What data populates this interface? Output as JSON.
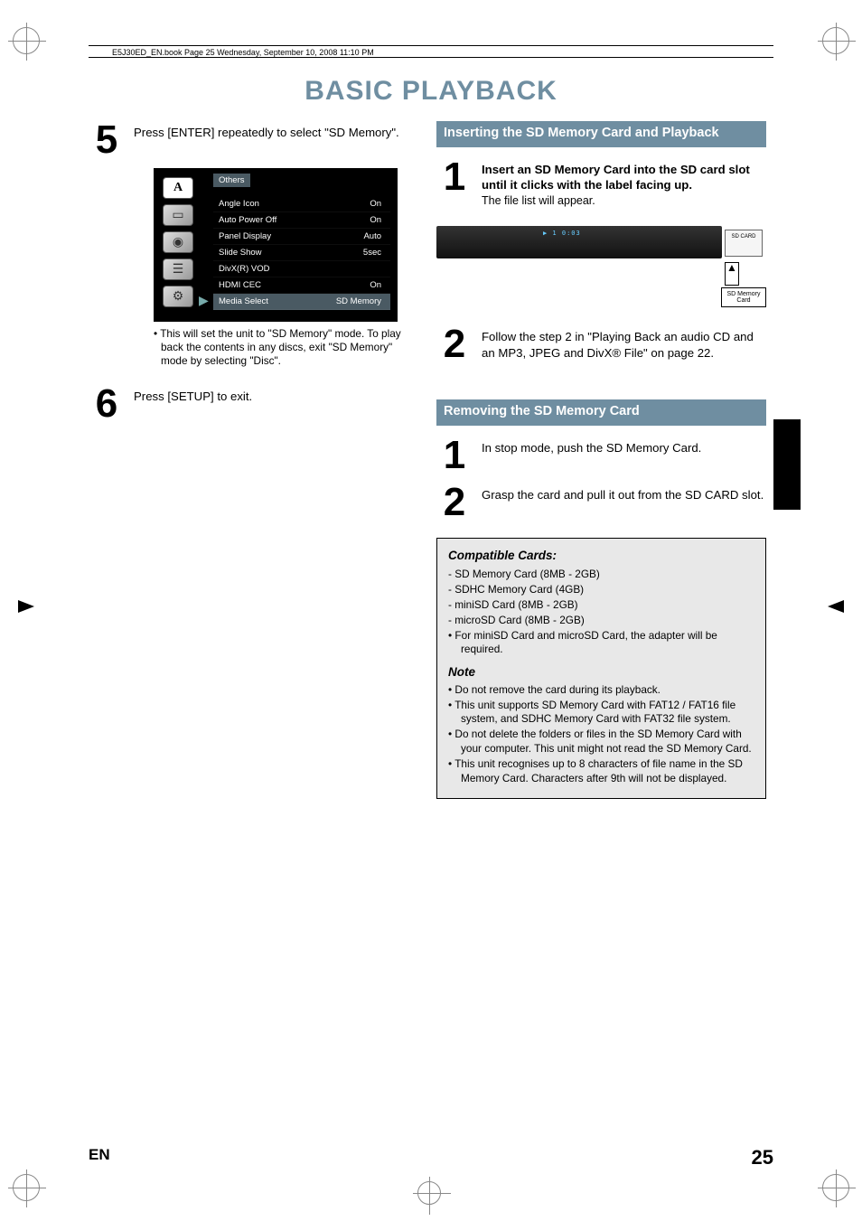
{
  "header_text": "E5J30ED_EN.book  Page 25  Wednesday, September 10, 2008  11:10 PM",
  "title": "BASIC PLAYBACK",
  "left": {
    "step5": {
      "num": "5",
      "text": "Press [ENTER] repeatedly to select \"SD Memory\".",
      "note": "This will set the unit to \"SD Memory\" mode. To play back the contents in any discs, exit \"SD Memory\" mode by selecting \"Disc\"."
    },
    "step6": {
      "num": "6",
      "text": "Press [SETUP] to exit."
    },
    "menu": {
      "others": "Others",
      "rows": [
        {
          "label": "Angle Icon",
          "val": "On"
        },
        {
          "label": "Auto Power Off",
          "val": "On"
        },
        {
          "label": "Panel Display",
          "val": "Auto"
        },
        {
          "label": "Slide Show",
          "val": "5sec"
        },
        {
          "label": "DivX(R) VOD",
          "val": ""
        },
        {
          "label": "HDMI CEC",
          "val": "On"
        },
        {
          "label": "Media Select",
          "val": "SD Memory"
        }
      ]
    }
  },
  "right": {
    "section_insert": "Inserting the SD Memory Card and Playback",
    "ins1": {
      "num": "1",
      "bold": "Insert an SD Memory Card into the SD card slot until it clicks with the label facing up.",
      "plain": "The file list will appear."
    },
    "sd_display": "▶  1   0:03",
    "sd_card_inside": "SD CARD",
    "sd_card_label": "SD Memory Card",
    "ins2": {
      "num": "2",
      "text": "Follow the step 2 in \"Playing Back an audio CD and an MP3, JPEG and DivX® File\" on page 22."
    },
    "section_remove": "Removing the SD Memory Card",
    "rem1": {
      "num": "1",
      "text": "In stop mode, push the SD Memory Card."
    },
    "rem2": {
      "num": "2",
      "text": "Grasp the card and pull it out from the SD CARD slot."
    },
    "compat": {
      "hdr": "Compatible Cards:",
      "items": [
        "SD Memory Card (8MB - 2GB)",
        "SDHC Memory Card (4GB)",
        "miniSD Card (8MB - 2GB)",
        "microSD Card (8MB - 2GB)"
      ],
      "adapter": "For miniSD Card and microSD Card, the adapter will be required.",
      "note_hdr": "Note",
      "notes": [
        "Do not remove the card during its playback.",
        "This unit supports SD Memory Card with FAT12 / FAT16 file system, and SDHC Memory Card with FAT32 file system.",
        "Do not delete the folders or files in the SD Memory Card with your computer. This unit might not read the SD Memory Card.",
        "This unit recognises up to 8 characters of file name in the SD Memory Card. Characters after 9th will not be displayed."
      ]
    }
  },
  "footer": {
    "en": "EN",
    "page": "25"
  }
}
